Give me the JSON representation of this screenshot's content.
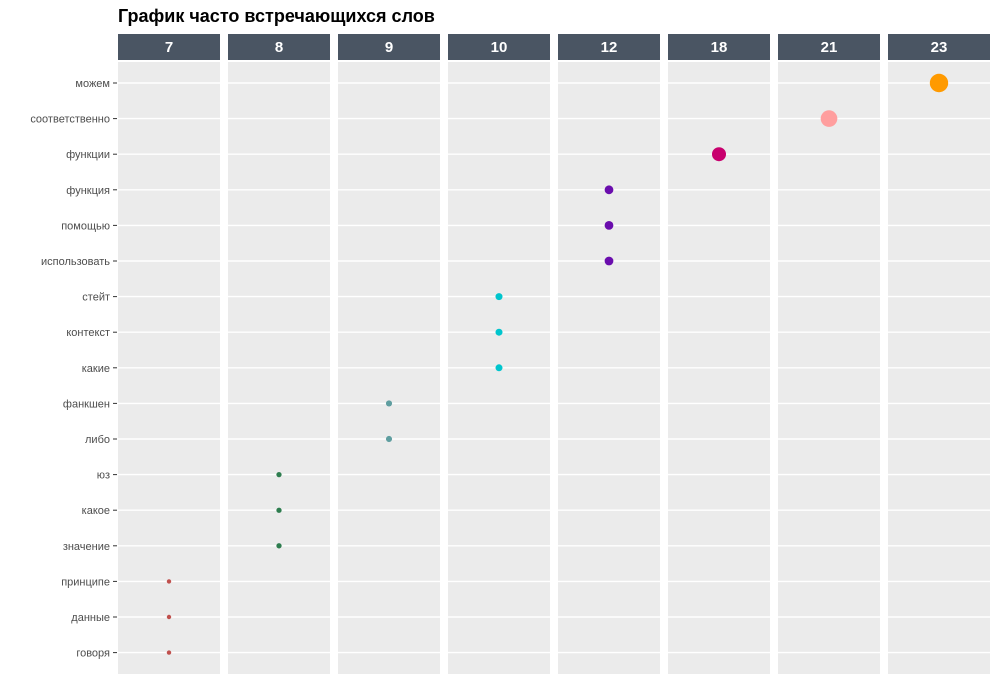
{
  "chart_data": {
    "type": "scatter",
    "title": "График часто встречающихся слов",
    "xlabel": "",
    "ylabel": "",
    "facets": [
      "7",
      "8",
      "9",
      "10",
      "12",
      "18",
      "21",
      "23"
    ],
    "words": [
      "можем",
      "соответственно",
      "функции",
      "функция",
      "помощью",
      "использовать",
      "стейт",
      "контекст",
      "какие",
      "фанкшен",
      "либо",
      "юз",
      "какое",
      "значение",
      "принципе",
      "данные",
      "говоря"
    ],
    "points": [
      {
        "word": "можем",
        "count": 23
      },
      {
        "word": "соответственно",
        "count": 21
      },
      {
        "word": "функции",
        "count": 18
      },
      {
        "word": "функция",
        "count": 12
      },
      {
        "word": "помощью",
        "count": 12
      },
      {
        "word": "использовать",
        "count": 12
      },
      {
        "word": "стейт",
        "count": 10
      },
      {
        "word": "контекст",
        "count": 10
      },
      {
        "word": "какие",
        "count": 10
      },
      {
        "word": "фанкшен",
        "count": 9
      },
      {
        "word": "либо",
        "count": 9
      },
      {
        "word": "юз",
        "count": 8
      },
      {
        "word": "какое",
        "count": 8
      },
      {
        "word": "значение",
        "count": 8
      },
      {
        "word": "принципе",
        "count": 7
      },
      {
        "word": "данные",
        "count": 7
      },
      {
        "word": "говоря",
        "count": 7
      }
    ],
    "facet_colors": {
      "7": "#c0504d",
      "8": "#2e7d4f",
      "9": "#5f9ea0",
      "10": "#00c5cd",
      "12": "#6a0dad",
      "18": "#c8006e",
      "21": "#ff9e9e",
      "23": "#ff9a00"
    },
    "grid": true,
    "legend": "none",
    "colors": {
      "panel_background": "#ebebeb",
      "strip_background": "#4a5563",
      "strip_text": "#ffffff",
      "gridline": "#ffffff"
    }
  }
}
